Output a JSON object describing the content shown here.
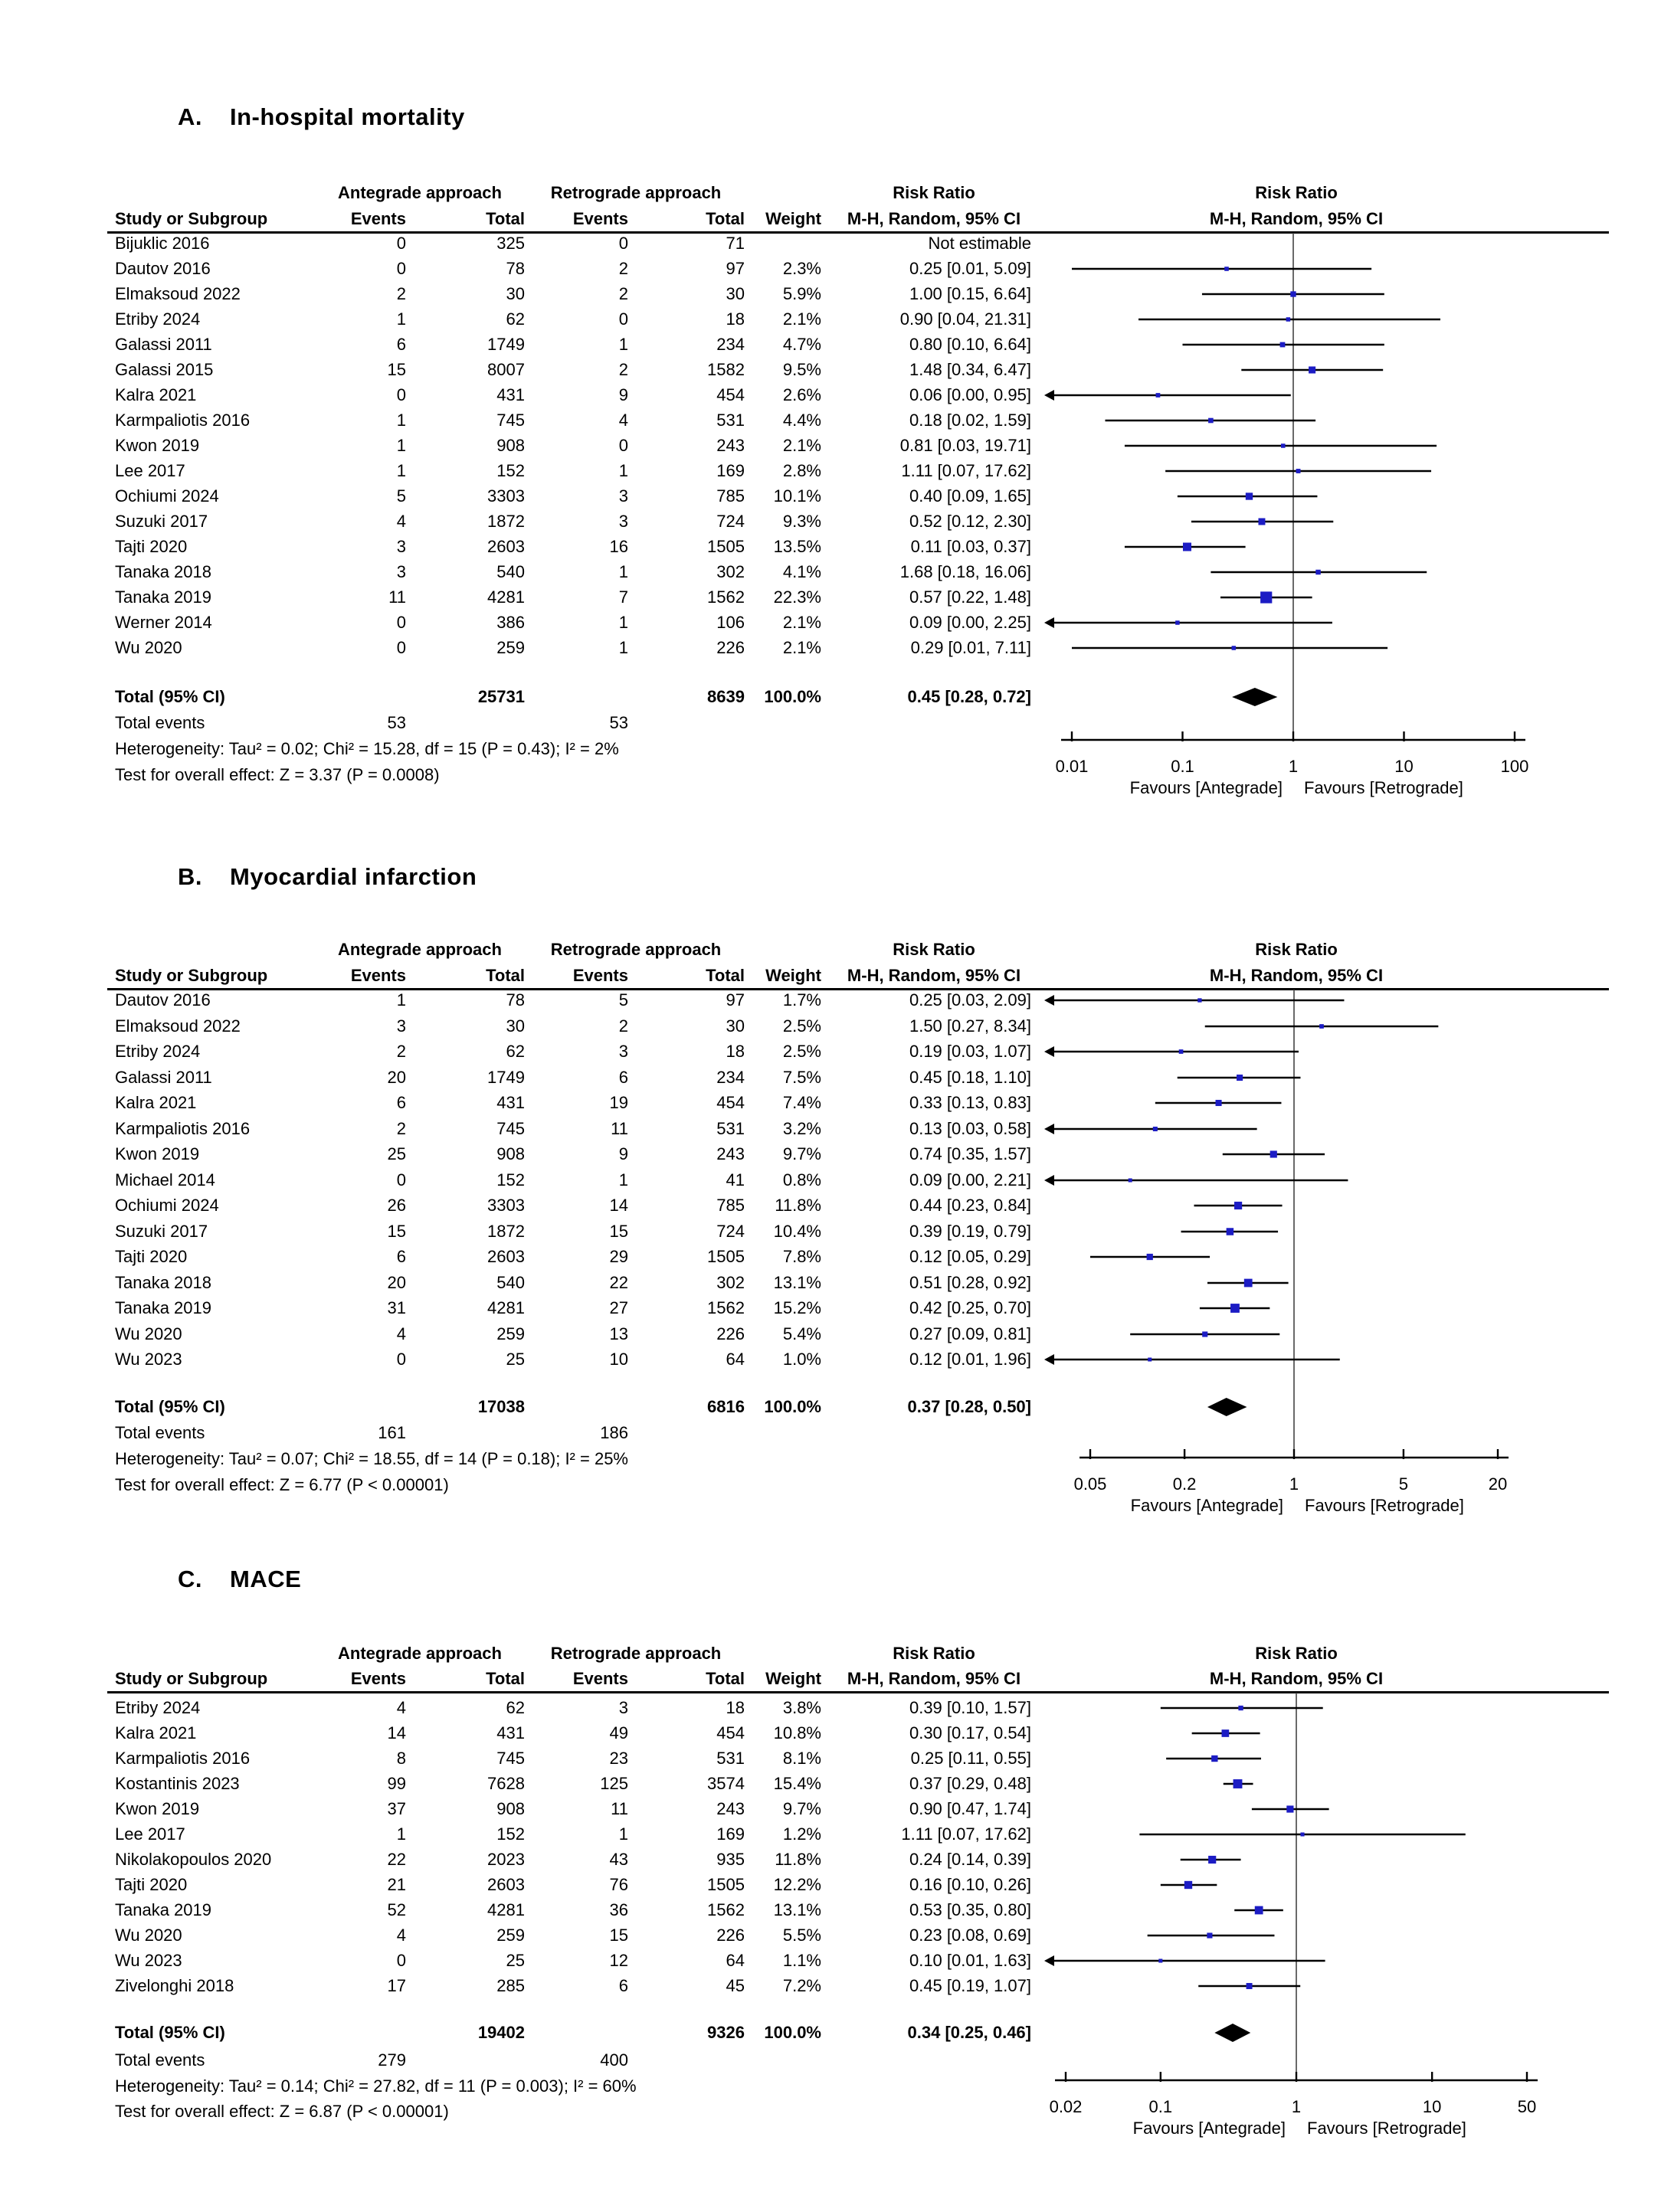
{
  "figure": {
    "columns": {
      "study": "Study or Subgroup",
      "events": "Events",
      "total": "Total",
      "weight": "Weight",
      "ratio_title": "Risk Ratio",
      "ratio_sub": "M-H, Random, 95% CI"
    },
    "colors": {
      "marker_square": "#1c1cc4",
      "diamond": "#000000",
      "line": "#000000",
      "null_line": "#444444"
    }
  },
  "chart_data": [
    {
      "type": "forest",
      "panel_label": "A.",
      "title": "In-hospital mortality",
      "group1": "Antegrade approach",
      "group2": "Retrograde approach",
      "effect": "Risk Ratio",
      "method": "M-H, Random, 95% CI",
      "axis": {
        "min": 0.01,
        "max": 100,
        "ticks": [
          "0.01",
          "0.1",
          "1",
          "10",
          "100"
        ],
        "favours_left": "Favours [Antegrade]",
        "favours_right": "Favours [Retrograde]"
      },
      "studies": [
        {
          "name": "Bijuklic 2016",
          "e1": 0,
          "n1": 325,
          "e2": 0,
          "n2": 71,
          "weight": "",
          "ci_label": "Not estimable",
          "rr": null,
          "lo": null,
          "hi": null
        },
        {
          "name": "Dautov 2016",
          "e1": 0,
          "n1": 78,
          "e2": 2,
          "n2": 97,
          "weight": "2.3%",
          "ci_label": "0.25 [0.01, 5.09]",
          "rr": 0.25,
          "lo": 0.01,
          "hi": 5.09
        },
        {
          "name": "Elmaksoud 2022",
          "e1": 2,
          "n1": 30,
          "e2": 2,
          "n2": 30,
          "weight": "5.9%",
          "ci_label": "1.00 [0.15, 6.64]",
          "rr": 1.0,
          "lo": 0.15,
          "hi": 6.64
        },
        {
          "name": "Etriby 2024",
          "e1": 1,
          "n1": 62,
          "e2": 0,
          "n2": 18,
          "weight": "2.1%",
          "ci_label": "0.90 [0.04, 21.31]",
          "rr": 0.9,
          "lo": 0.04,
          "hi": 21.31
        },
        {
          "name": "Galassi 2011",
          "e1": 6,
          "n1": 1749,
          "e2": 1,
          "n2": 234,
          "weight": "4.7%",
          "ci_label": "0.80 [0.10, 6.64]",
          "rr": 0.8,
          "lo": 0.1,
          "hi": 6.64
        },
        {
          "name": "Galassi 2015",
          "e1": 15,
          "n1": 8007,
          "e2": 2,
          "n2": 1582,
          "weight": "9.5%",
          "ci_label": "1.48 [0.34, 6.47]",
          "rr": 1.48,
          "lo": 0.34,
          "hi": 6.47
        },
        {
          "name": "Kalra 2021",
          "e1": 0,
          "n1": 431,
          "e2": 9,
          "n2": 454,
          "weight": "2.6%",
          "ci_label": "0.06 [0.00, 0.95]",
          "rr": 0.06,
          "lo": 0.001,
          "hi": 0.95
        },
        {
          "name": "Karmpaliotis 2016",
          "e1": 1,
          "n1": 745,
          "e2": 4,
          "n2": 531,
          "weight": "4.4%",
          "ci_label": "0.18 [0.02, 1.59]",
          "rr": 0.18,
          "lo": 0.02,
          "hi": 1.59
        },
        {
          "name": "Kwon 2019",
          "e1": 1,
          "n1": 908,
          "e2": 0,
          "n2": 243,
          "weight": "2.1%",
          "ci_label": "0.81 [0.03, 19.71]",
          "rr": 0.81,
          "lo": 0.03,
          "hi": 19.71
        },
        {
          "name": "Lee 2017",
          "e1": 1,
          "n1": 152,
          "e2": 1,
          "n2": 169,
          "weight": "2.8%",
          "ci_label": "1.11 [0.07, 17.62]",
          "rr": 1.11,
          "lo": 0.07,
          "hi": 17.62
        },
        {
          "name": "Ochiumi 2024",
          "e1": 5,
          "n1": 3303,
          "e2": 3,
          "n2": 785,
          "weight": "10.1%",
          "ci_label": "0.40 [0.09, 1.65]",
          "rr": 0.4,
          "lo": 0.09,
          "hi": 1.65
        },
        {
          "name": "Suzuki 2017",
          "e1": 4,
          "n1": 1872,
          "e2": 3,
          "n2": 724,
          "weight": "9.3%",
          "ci_label": "0.52 [0.12, 2.30]",
          "rr": 0.52,
          "lo": 0.12,
          "hi": 2.3
        },
        {
          "name": "Tajti 2020",
          "e1": 3,
          "n1": 2603,
          "e2": 16,
          "n2": 1505,
          "weight": "13.5%",
          "ci_label": "0.11 [0.03, 0.37]",
          "rr": 0.11,
          "lo": 0.03,
          "hi": 0.37
        },
        {
          "name": "Tanaka 2018",
          "e1": 3,
          "n1": 540,
          "e2": 1,
          "n2": 302,
          "weight": "4.1%",
          "ci_label": "1.68 [0.18, 16.06]",
          "rr": 1.68,
          "lo": 0.18,
          "hi": 16.06
        },
        {
          "name": "Tanaka 2019",
          "e1": 11,
          "n1": 4281,
          "e2": 7,
          "n2": 1562,
          "weight": "22.3%",
          "ci_label": "0.57 [0.22, 1.48]",
          "rr": 0.57,
          "lo": 0.22,
          "hi": 1.48
        },
        {
          "name": "Werner 2014",
          "e1": 0,
          "n1": 386,
          "e2": 1,
          "n2": 106,
          "weight": "2.1%",
          "ci_label": "0.09 [0.00, 2.25]",
          "rr": 0.09,
          "lo": 0.001,
          "hi": 2.25
        },
        {
          "name": "Wu 2020",
          "e1": 0,
          "n1": 259,
          "e2": 1,
          "n2": 226,
          "weight": "2.1%",
          "ci_label": "0.29 [0.01, 7.11]",
          "rr": 0.29,
          "lo": 0.01,
          "hi": 7.11
        }
      ],
      "total": {
        "label": "Total (95% CI)",
        "n1": "25731",
        "n2": "8639",
        "weight": "100.0%",
        "ci_label": "0.45 [0.28, 0.72]",
        "rr": 0.45,
        "lo": 0.28,
        "hi": 0.72
      },
      "total_events": {
        "label": "Total events",
        "e1": "53",
        "e2": "53"
      },
      "heterogeneity": "Heterogeneity: Tau² = 0.02; Chi² = 15.28, df = 15 (P = 0.43); I² = 2%",
      "overall_effect": "Test for overall effect: Z = 3.37 (P = 0.0008)"
    },
    {
      "type": "forest",
      "panel_label": "B.",
      "title": "Myocardial infarction",
      "group1": "Antegrade approach",
      "group2": "Retrograde approach",
      "effect": "Risk Ratio",
      "method": "M-H, Random, 95% CI",
      "axis": {
        "min": 0.05,
        "max": 20,
        "ticks": [
          "0.05",
          "0.2",
          "1",
          "5",
          "20"
        ],
        "favours_left": "Favours [Antegrade]",
        "favours_right": "Favours [Retrograde]"
      },
      "studies": [
        {
          "name": "Dautov 2016",
          "e1": 1,
          "n1": 78,
          "e2": 5,
          "n2": 97,
          "weight": "1.7%",
          "ci_label": "0.25 [0.03, 2.09]",
          "rr": 0.25,
          "lo": 0.03,
          "hi": 2.09
        },
        {
          "name": "Elmaksoud 2022",
          "e1": 3,
          "n1": 30,
          "e2": 2,
          "n2": 30,
          "weight": "2.5%",
          "ci_label": "1.50 [0.27, 8.34]",
          "rr": 1.5,
          "lo": 0.27,
          "hi": 8.34
        },
        {
          "name": "Etriby 2024",
          "e1": 2,
          "n1": 62,
          "e2": 3,
          "n2": 18,
          "weight": "2.5%",
          "ci_label": "0.19 [0.03, 1.07]",
          "rr": 0.19,
          "lo": 0.03,
          "hi": 1.07
        },
        {
          "name": "Galassi 2011",
          "e1": 20,
          "n1": 1749,
          "e2": 6,
          "n2": 234,
          "weight": "7.5%",
          "ci_label": "0.45 [0.18, 1.10]",
          "rr": 0.45,
          "lo": 0.18,
          "hi": 1.1
        },
        {
          "name": "Kalra 2021",
          "e1": 6,
          "n1": 431,
          "e2": 19,
          "n2": 454,
          "weight": "7.4%",
          "ci_label": "0.33 [0.13, 0.83]",
          "rr": 0.33,
          "lo": 0.13,
          "hi": 0.83
        },
        {
          "name": "Karmpaliotis 2016",
          "e1": 2,
          "n1": 745,
          "e2": 11,
          "n2": 531,
          "weight": "3.2%",
          "ci_label": "0.13 [0.03, 0.58]",
          "rr": 0.13,
          "lo": 0.03,
          "hi": 0.58
        },
        {
          "name": "Kwon 2019",
          "e1": 25,
          "n1": 908,
          "e2": 9,
          "n2": 243,
          "weight": "9.7%",
          "ci_label": "0.74 [0.35, 1.57]",
          "rr": 0.74,
          "lo": 0.35,
          "hi": 1.57
        },
        {
          "name": "Michael 2014",
          "e1": 0,
          "n1": 152,
          "e2": 1,
          "n2": 41,
          "weight": "0.8%",
          "ci_label": "0.09 [0.00, 2.21]",
          "rr": 0.09,
          "lo": 0.001,
          "hi": 2.21
        },
        {
          "name": "Ochiumi 2024",
          "e1": 26,
          "n1": 3303,
          "e2": 14,
          "n2": 785,
          "weight": "11.8%",
          "ci_label": "0.44 [0.23, 0.84]",
          "rr": 0.44,
          "lo": 0.23,
          "hi": 0.84
        },
        {
          "name": "Suzuki 2017",
          "e1": 15,
          "n1": 1872,
          "e2": 15,
          "n2": 724,
          "weight": "10.4%",
          "ci_label": "0.39 [0.19, 0.79]",
          "rr": 0.39,
          "lo": 0.19,
          "hi": 0.79
        },
        {
          "name": "Tajti 2020",
          "e1": 6,
          "n1": 2603,
          "e2": 29,
          "n2": 1505,
          "weight": "7.8%",
          "ci_label": "0.12 [0.05, 0.29]",
          "rr": 0.12,
          "lo": 0.05,
          "hi": 0.29
        },
        {
          "name": "Tanaka 2018",
          "e1": 20,
          "n1": 540,
          "e2": 22,
          "n2": 302,
          "weight": "13.1%",
          "ci_label": "0.51 [0.28, 0.92]",
          "rr": 0.51,
          "lo": 0.28,
          "hi": 0.92
        },
        {
          "name": "Tanaka 2019",
          "e1": 31,
          "n1": 4281,
          "e2": 27,
          "n2": 1562,
          "weight": "15.2%",
          "ci_label": "0.42 [0.25, 0.70]",
          "rr": 0.42,
          "lo": 0.25,
          "hi": 0.7
        },
        {
          "name": "Wu 2020",
          "e1": 4,
          "n1": 259,
          "e2": 13,
          "n2": 226,
          "weight": "5.4%",
          "ci_label": "0.27 [0.09, 0.81]",
          "rr": 0.27,
          "lo": 0.09,
          "hi": 0.81
        },
        {
          "name": "Wu 2023",
          "e1": 0,
          "n1": 25,
          "e2": 10,
          "n2": 64,
          "weight": "1.0%",
          "ci_label": "0.12 [0.01, 1.96]",
          "rr": 0.12,
          "lo": 0.01,
          "hi": 1.96
        }
      ],
      "total": {
        "label": "Total (95% CI)",
        "n1": "17038",
        "n2": "6816",
        "weight": "100.0%",
        "ci_label": "0.37 [0.28, 0.50]",
        "rr": 0.37,
        "lo": 0.28,
        "hi": 0.5
      },
      "total_events": {
        "label": "Total events",
        "e1": "161",
        "e2": "186"
      },
      "heterogeneity": "Heterogeneity: Tau² = 0.07; Chi² = 18.55, df = 14 (P = 0.18); I² = 25%",
      "overall_effect": "Test for overall effect: Z = 6.77 (P < 0.00001)"
    },
    {
      "type": "forest",
      "panel_label": "C.",
      "title": "MACE",
      "group1": "Antegrade approach",
      "group2": "Retrograde approach",
      "effect": "Risk Ratio",
      "method": "M-H, Random, 95% CI",
      "axis": {
        "min": 0.02,
        "max": 50,
        "ticks": [
          "0.02",
          "0.1",
          "1",
          "10",
          "50"
        ],
        "favours_left": "Favours [Antegrade]",
        "favours_right": "Favours [Retrograde]"
      },
      "studies": [
        {
          "name": "Etriby 2024",
          "e1": 4,
          "n1": 62,
          "e2": 3,
          "n2": 18,
          "weight": "3.8%",
          "ci_label": "0.39 [0.10, 1.57]",
          "rr": 0.39,
          "lo": 0.1,
          "hi": 1.57
        },
        {
          "name": "Kalra 2021",
          "e1": 14,
          "n1": 431,
          "e2": 49,
          "n2": 454,
          "weight": "10.8%",
          "ci_label": "0.30 [0.17, 0.54]",
          "rr": 0.3,
          "lo": 0.17,
          "hi": 0.54
        },
        {
          "name": "Karmpaliotis 2016",
          "e1": 8,
          "n1": 745,
          "e2": 23,
          "n2": 531,
          "weight": "8.1%",
          "ci_label": "0.25 [0.11, 0.55]",
          "rr": 0.25,
          "lo": 0.11,
          "hi": 0.55
        },
        {
          "name": "Kostantinis 2023",
          "e1": 99,
          "n1": 7628,
          "e2": 125,
          "n2": 3574,
          "weight": "15.4%",
          "ci_label": "0.37 [0.29, 0.48]",
          "rr": 0.37,
          "lo": 0.29,
          "hi": 0.48
        },
        {
          "name": "Kwon 2019",
          "e1": 37,
          "n1": 908,
          "e2": 11,
          "n2": 243,
          "weight": "9.7%",
          "ci_label": "0.90 [0.47, 1.74]",
          "rr": 0.9,
          "lo": 0.47,
          "hi": 1.74
        },
        {
          "name": "Lee 2017",
          "e1": 1,
          "n1": 152,
          "e2": 1,
          "n2": 169,
          "weight": "1.2%",
          "ci_label": "1.11 [0.07, 17.62]",
          "rr": 1.11,
          "lo": 0.07,
          "hi": 17.62
        },
        {
          "name": "Nikolakopoulos 2020",
          "e1": 22,
          "n1": 2023,
          "e2": 43,
          "n2": 935,
          "weight": "11.8%",
          "ci_label": "0.24 [0.14, 0.39]",
          "rr": 0.24,
          "lo": 0.14,
          "hi": 0.39
        },
        {
          "name": "Tajti 2020",
          "e1": 21,
          "n1": 2603,
          "e2": 76,
          "n2": 1505,
          "weight": "12.2%",
          "ci_label": "0.16 [0.10, 0.26]",
          "rr": 0.16,
          "lo": 0.1,
          "hi": 0.26
        },
        {
          "name": "Tanaka 2019",
          "e1": 52,
          "n1": 4281,
          "e2": 36,
          "n2": 1562,
          "weight": "13.1%",
          "ci_label": "0.53 [0.35, 0.80]",
          "rr": 0.53,
          "lo": 0.35,
          "hi": 0.8
        },
        {
          "name": "Wu 2020",
          "e1": 4,
          "n1": 259,
          "e2": 15,
          "n2": 226,
          "weight": "5.5%",
          "ci_label": "0.23 [0.08, 0.69]",
          "rr": 0.23,
          "lo": 0.08,
          "hi": 0.69
        },
        {
          "name": "Wu 2023",
          "e1": 0,
          "n1": 25,
          "e2": 12,
          "n2": 64,
          "weight": "1.1%",
          "ci_label": "0.10 [0.01, 1.63]",
          "rr": 0.1,
          "lo": 0.01,
          "hi": 1.63
        },
        {
          "name": "Zivelonghi 2018",
          "e1": 17,
          "n1": 285,
          "e2": 6,
          "n2": 45,
          "weight": "7.2%",
          "ci_label": "0.45 [0.19, 1.07]",
          "rr": 0.45,
          "lo": 0.19,
          "hi": 1.07
        }
      ],
      "total": {
        "label": "Total (95% CI)",
        "n1": "19402",
        "n2": "9326",
        "weight": "100.0%",
        "ci_label": "0.34 [0.25, 0.46]",
        "rr": 0.34,
        "lo": 0.25,
        "hi": 0.46
      },
      "total_events": {
        "label": "Total events",
        "e1": "279",
        "e2": "400"
      },
      "heterogeneity": "Heterogeneity: Tau² = 0.14; Chi² = 27.82, df = 11 (P = 0.003); I² = 60%",
      "overall_effect": "Test for overall effect: Z = 6.87 (P < 0.00001)"
    }
  ]
}
